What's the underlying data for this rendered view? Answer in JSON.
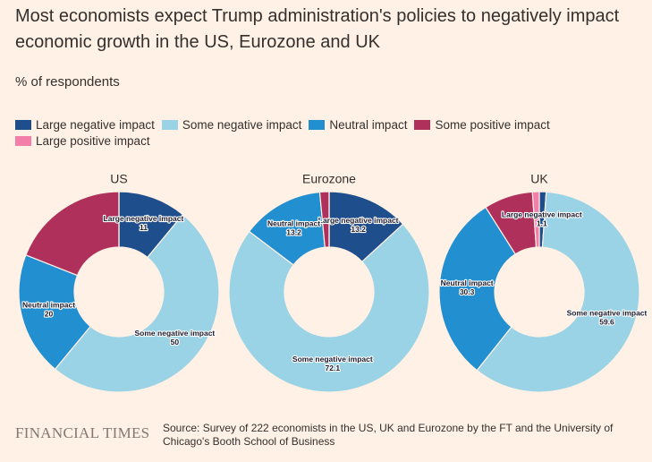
{
  "title": "Most economists expect Trump administration's policies to negatively impact economic growth in the US, Eurozone and UK",
  "subtitle": "% of respondents",
  "legend": {
    "categories": [
      "Large negative impact",
      "Some negative impact",
      "Neutral impact",
      "Some positive impact",
      "Large positive impact"
    ],
    "colors": [
      "#1f4e8c",
      "#9ad3e6",
      "#228fd0",
      "#b0305c",
      "#f47eaa"
    ]
  },
  "chart_data": [
    {
      "type": "donut",
      "title": "US",
      "values": [
        11,
        50,
        20,
        19,
        0
      ]
    },
    {
      "type": "donut",
      "title": "Eurozone",
      "values": [
        13.2,
        72.1,
        13.2,
        1.5,
        0
      ]
    },
    {
      "type": "donut",
      "title": "UK",
      "values": [
        1.1,
        59.6,
        30.3,
        7.9,
        1.1
      ]
    }
  ],
  "brand": "FINANCIAL TIMES",
  "source": "Source: Survey of 222 economists in the US, UK and Eurozone by the FT and the University of Chicago's Booth School of Business"
}
